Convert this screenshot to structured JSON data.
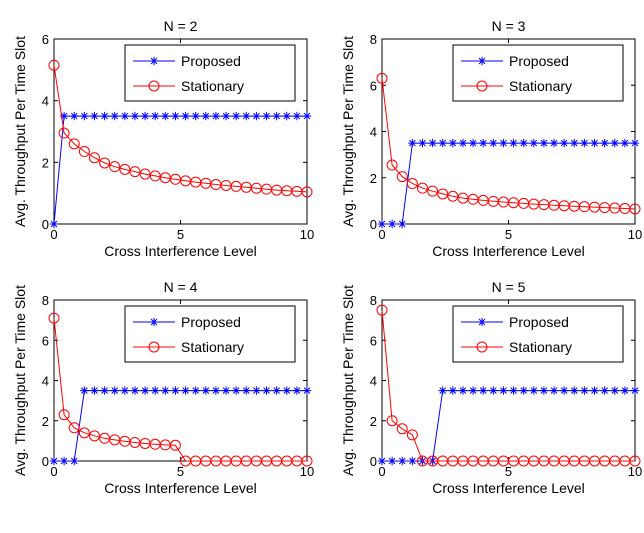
{
  "chart_data": [
    {
      "type": "line",
      "title": "N = 2",
      "xlabel": "Cross Interference Level",
      "ylabel": "Avg. Throughput Per Time Slot",
      "xlim": [
        0,
        10
      ],
      "ylim": [
        0,
        6
      ],
      "xticks": [
        "0",
        "5",
        "10"
      ],
      "yticks": [
        "0",
        "2",
        "4",
        "6"
      ],
      "legend": "top-right",
      "series": [
        {
          "name": "Proposed",
          "color": "#0000ff",
          "marker": "asterisk",
          "x": [
            0,
            0.4,
            0.8,
            1.2,
            1.6,
            2.0,
            2.4,
            2.8,
            3.2,
            3.6,
            4.0,
            4.4,
            4.8,
            5.2,
            5.6,
            6.0,
            6.4,
            6.8,
            7.2,
            7.6,
            8.0,
            8.4,
            8.8,
            9.2,
            9.6,
            10.0
          ],
          "y": [
            0,
            3.5,
            3.5,
            3.5,
            3.5,
            3.5,
            3.5,
            3.5,
            3.5,
            3.5,
            3.5,
            3.5,
            3.5,
            3.5,
            3.5,
            3.5,
            3.5,
            3.5,
            3.5,
            3.5,
            3.5,
            3.5,
            3.5,
            3.5,
            3.5,
            3.5
          ]
        },
        {
          "name": "Stationary",
          "color": "#ff0000",
          "marker": "circle",
          "x": [
            0,
            0.4,
            0.8,
            1.2,
            1.6,
            2.0,
            2.4,
            2.8,
            3.2,
            3.6,
            4.0,
            4.4,
            4.8,
            5.2,
            5.6,
            6.0,
            6.4,
            6.8,
            7.2,
            7.6,
            8.0,
            8.4,
            8.8,
            9.2,
            9.6,
            10.0
          ],
          "y": [
            5.15,
            2.95,
            2.6,
            2.35,
            2.15,
            1.98,
            1.86,
            1.77,
            1.7,
            1.62,
            1.56,
            1.5,
            1.45,
            1.4,
            1.36,
            1.32,
            1.28,
            1.25,
            1.22,
            1.19,
            1.16,
            1.13,
            1.1,
            1.08,
            1.06,
            1.04
          ]
        }
      ]
    },
    {
      "type": "line",
      "title": "N = 3",
      "xlabel": "Cross Interference Level",
      "ylabel": "Avg. Throughput Per Time Slot",
      "xlim": [
        0,
        10
      ],
      "ylim": [
        0,
        8
      ],
      "xticks": [
        "0",
        "5",
        "10"
      ],
      "yticks": [
        "0",
        "2",
        "4",
        "6",
        "8"
      ],
      "legend": "top-right",
      "series": [
        {
          "name": "Proposed",
          "color": "#0000ff",
          "marker": "asterisk",
          "x": [
            0,
            0.4,
            0.8,
            1.2,
            1.6,
            2.0,
            2.4,
            2.8,
            3.2,
            3.6,
            4.0,
            4.4,
            4.8,
            5.2,
            5.6,
            6.0,
            6.4,
            6.8,
            7.2,
            7.6,
            8.0,
            8.4,
            8.8,
            9.2,
            9.6,
            10.0
          ],
          "y": [
            0,
            0,
            0,
            3.5,
            3.5,
            3.5,
            3.5,
            3.5,
            3.5,
            3.5,
            3.5,
            3.5,
            3.5,
            3.5,
            3.5,
            3.5,
            3.5,
            3.5,
            3.5,
            3.5,
            3.5,
            3.5,
            3.5,
            3.5,
            3.5,
            3.5
          ]
        },
        {
          "name": "Stationary",
          "color": "#ff0000",
          "marker": "circle",
          "x": [
            0,
            0.4,
            0.8,
            1.2,
            1.6,
            2.0,
            2.4,
            2.8,
            3.2,
            3.6,
            4.0,
            4.4,
            4.8,
            5.2,
            5.6,
            6.0,
            6.4,
            6.8,
            7.2,
            7.6,
            8.0,
            8.4,
            8.8,
            9.2,
            9.6,
            10.0
          ],
          "y": [
            6.3,
            2.55,
            2.05,
            1.75,
            1.55,
            1.42,
            1.3,
            1.2,
            1.12,
            1.07,
            1.02,
            0.98,
            0.95,
            0.92,
            0.89,
            0.86,
            0.84,
            0.81,
            0.79,
            0.77,
            0.75,
            0.73,
            0.71,
            0.69,
            0.67,
            0.65
          ]
        }
      ]
    },
    {
      "type": "line",
      "title": "N = 4",
      "xlabel": "Cross Interference Level",
      "ylabel": "Avg. Throughput Per Time Slot",
      "xlim": [
        0,
        10
      ],
      "ylim": [
        0,
        8
      ],
      "xticks": [
        "0",
        "5",
        "10"
      ],
      "yticks": [
        "0",
        "2",
        "4",
        "6",
        "8"
      ],
      "legend": "top-right",
      "series": [
        {
          "name": "Proposed",
          "color": "#0000ff",
          "marker": "asterisk",
          "x": [
            0,
            0.4,
            0.8,
            1.2,
            1.6,
            2.0,
            2.4,
            2.8,
            3.2,
            3.6,
            4.0,
            4.4,
            4.8,
            5.2,
            5.6,
            6.0,
            6.4,
            6.8,
            7.2,
            7.6,
            8.0,
            8.4,
            8.8,
            9.2,
            9.6,
            10.0
          ],
          "y": [
            0,
            0,
            0,
            3.5,
            3.5,
            3.5,
            3.5,
            3.5,
            3.5,
            3.5,
            3.5,
            3.5,
            3.5,
            3.5,
            3.5,
            3.5,
            3.5,
            3.5,
            3.5,
            3.5,
            3.5,
            3.5,
            3.5,
            3.5,
            3.5,
            3.5
          ]
        },
        {
          "name": "Stationary",
          "color": "#ff0000",
          "marker": "circle",
          "x": [
            0,
            0.4,
            0.8,
            1.2,
            1.6,
            2.0,
            2.4,
            2.8,
            3.2,
            3.6,
            4.0,
            4.4,
            4.8,
            5.2,
            5.6,
            6.0,
            6.4,
            6.8,
            7.2,
            7.6,
            8.0,
            8.4,
            8.8,
            9.2,
            9.6,
            10.0
          ],
          "y": [
            7.1,
            2.3,
            1.65,
            1.4,
            1.25,
            1.13,
            1.05,
            0.98,
            0.92,
            0.87,
            0.83,
            0.8,
            0.78,
            0,
            0,
            0,
            0,
            0,
            0,
            0,
            0,
            0,
            0,
            0,
            0,
            0
          ]
        }
      ]
    },
    {
      "type": "line",
      "title": "N = 5",
      "xlabel": "Cross Interference Level",
      "ylabel": "Avg. Throughput Per Time Slot",
      "xlim": [
        0,
        10
      ],
      "ylim": [
        0,
        8
      ],
      "xticks": [
        "0",
        "5",
        "10"
      ],
      "yticks": [
        "0",
        "2",
        "4",
        "6",
        "8"
      ],
      "legend": "top-right",
      "series": [
        {
          "name": "Proposed",
          "color": "#0000ff",
          "marker": "asterisk",
          "x": [
            0,
            0.4,
            0.8,
            1.2,
            1.6,
            2.0,
            2.4,
            2.8,
            3.2,
            3.6,
            4.0,
            4.4,
            4.8,
            5.2,
            5.6,
            6.0,
            6.4,
            6.8,
            7.2,
            7.6,
            8.0,
            8.4,
            8.8,
            9.2,
            9.6,
            10.0
          ],
          "y": [
            0,
            0,
            0,
            0,
            0,
            0,
            3.5,
            3.5,
            3.5,
            3.5,
            3.5,
            3.5,
            3.5,
            3.5,
            3.5,
            3.5,
            3.5,
            3.5,
            3.5,
            3.5,
            3.5,
            3.5,
            3.5,
            3.5,
            3.5,
            3.5
          ]
        },
        {
          "name": "Stationary",
          "color": "#ff0000",
          "marker": "circle",
          "x": [
            0,
            0.4,
            0.8,
            1.2,
            1.6,
            2.0,
            2.4,
            2.8,
            3.2,
            3.6,
            4.0,
            4.4,
            4.8,
            5.2,
            5.6,
            6.0,
            6.4,
            6.8,
            7.2,
            7.6,
            8.0,
            8.4,
            8.8,
            9.2,
            9.6,
            10.0
          ],
          "y": [
            7.5,
            2.0,
            1.6,
            1.3,
            0,
            0,
            0,
            0,
            0,
            0,
            0,
            0,
            0,
            0,
            0,
            0,
            0,
            0,
            0,
            0,
            0,
            0,
            0,
            0,
            0,
            0
          ]
        }
      ]
    }
  ]
}
